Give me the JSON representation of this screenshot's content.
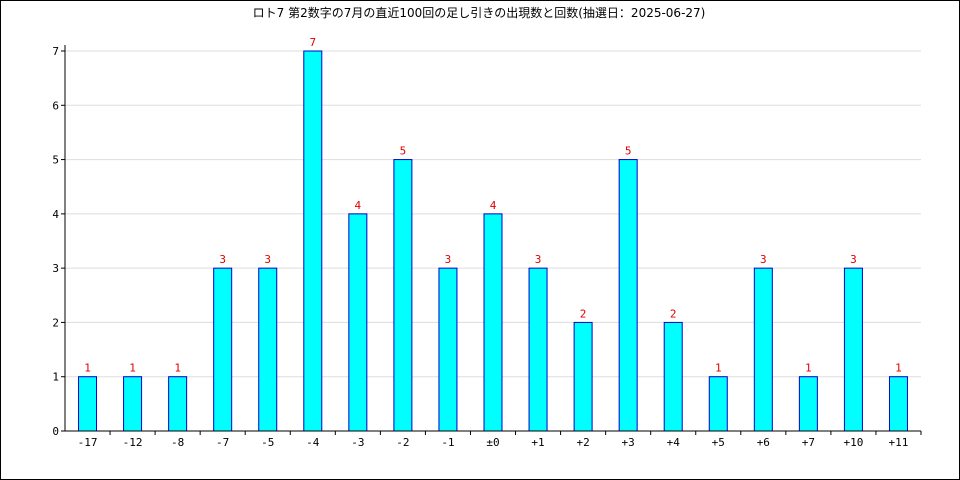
{
  "chart_data": {
    "type": "bar",
    "title": "ロト7 第2数字の7月の直近100回の足し引きの出現数と回数(抽選日：2025-06-27)",
    "xlabel": "",
    "ylabel": "",
    "categories": [
      "-17",
      "-12",
      "-8",
      "-7",
      "-5",
      "-4",
      "-3",
      "-2",
      "-1",
      "±0",
      "+1",
      "+2",
      "+3",
      "+4",
      "+5",
      "+6",
      "+7",
      "+10",
      "+11"
    ],
    "values": [
      1,
      1,
      1,
      3,
      3,
      7,
      4,
      5,
      3,
      4,
      3,
      2,
      5,
      2,
      1,
      3,
      1,
      3,
      1
    ],
    "ylim": [
      0,
      7
    ],
    "yticks": [
      0,
      1,
      2,
      3,
      4,
      5,
      6,
      7
    ],
    "grid": true,
    "data_labels": true,
    "colors": {
      "bar_fill": "#00ffff",
      "bar_stroke": "#0000cc",
      "label": "#e00000",
      "grid": "#dddddd"
    }
  }
}
